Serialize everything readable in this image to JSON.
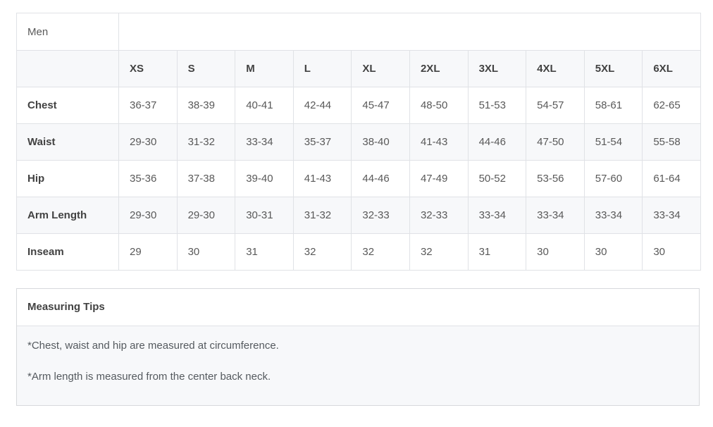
{
  "size_chart": {
    "gender_label": "Men",
    "sizes": [
      "XS",
      "S",
      "M",
      "L",
      "XL",
      "2XL",
      "3XL",
      "4XL",
      "5XL",
      "6XL"
    ],
    "rows": [
      {
        "label": "Chest",
        "values": [
          "36-37",
          "38-39",
          "40-41",
          "42-44",
          "45-47",
          "48-50",
          "51-53",
          "54-57",
          "58-61",
          "62-65"
        ]
      },
      {
        "label": "Waist",
        "values": [
          "29-30",
          "31-32",
          "33-34",
          "35-37",
          "38-40",
          "41-43",
          "44-46",
          "47-50",
          "51-54",
          "55-58"
        ]
      },
      {
        "label": "Hip",
        "values": [
          "35-36",
          "37-38",
          "39-40",
          "41-43",
          "44-46",
          "47-49",
          "50-52",
          "53-56",
          "57-60",
          "61-64"
        ]
      },
      {
        "label": "Arm Length",
        "values": [
          "29-30",
          "29-30",
          "30-31",
          "31-32",
          "32-33",
          "32-33",
          "33-34",
          "33-34",
          "33-34",
          "33-34"
        ]
      },
      {
        "label": "Inseam",
        "values": [
          "29",
          "30",
          "31",
          "32",
          "32",
          "32",
          "31",
          "30",
          "30",
          "30"
        ]
      }
    ]
  },
  "measuring_tips": {
    "title": "Measuring Tips",
    "notes": [
      "*Chest, waist and hip are measured at circumference.",
      "*Arm length is measured from the center back neck."
    ]
  },
  "colors": {
    "stripe_background": "#f7f8fa",
    "table_border": "#e0e2e6",
    "panel_border": "#d7d9dc",
    "heading_text": "#424242",
    "value_text": "#595959"
  }
}
